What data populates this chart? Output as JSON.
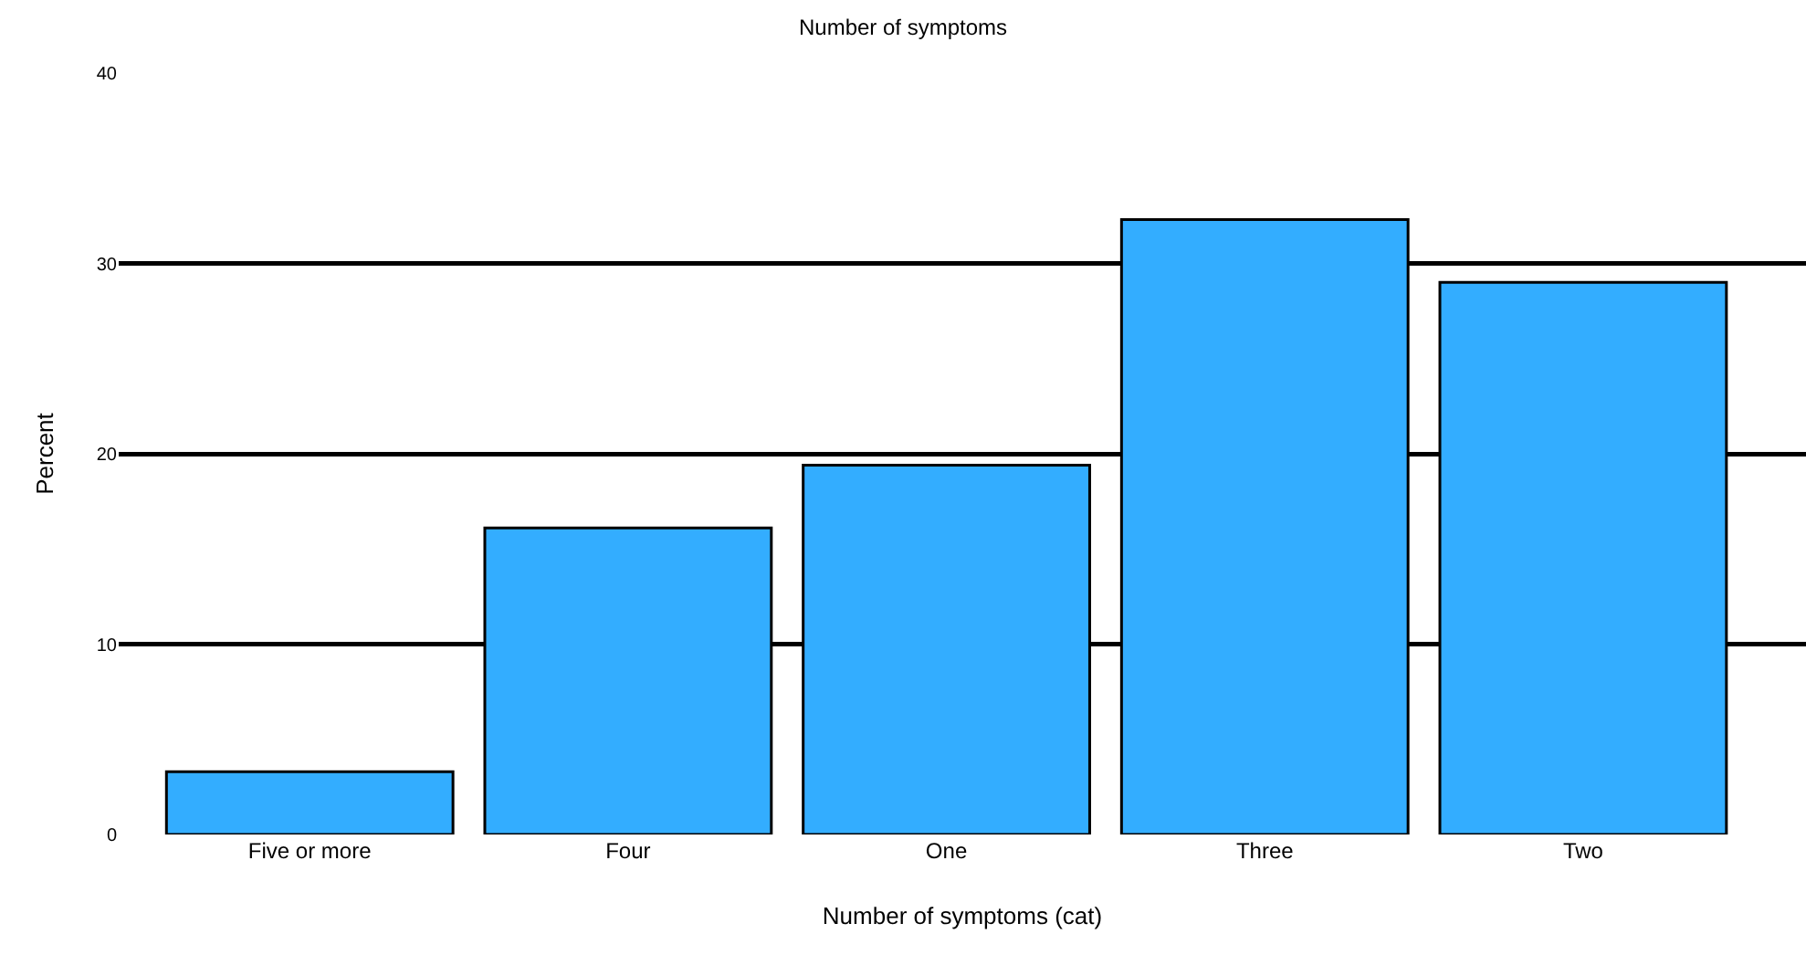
{
  "chart_data": {
    "type": "bar",
    "title": "Number of symptoms",
    "xlabel": "Number of symptoms (cat)",
    "ylabel": "Percent",
    "categories": [
      "Five or more",
      "Four",
      "One",
      "Three",
      "Two"
    ],
    "values": [
      3.3,
      16.1,
      19.4,
      32.3,
      29.0
    ],
    "color": "#33adff",
    "ylim": [
      0,
      40
    ],
    "yticks": [
      0,
      10,
      20,
      30,
      40
    ],
    "grid": "y"
  }
}
